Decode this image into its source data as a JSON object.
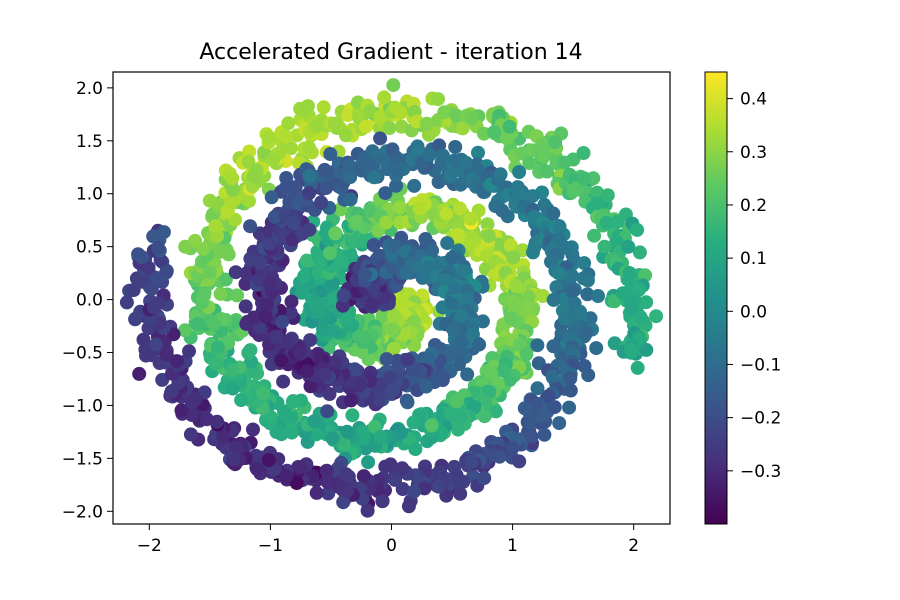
{
  "chart_data": {
    "type": "scatter",
    "title": "Accelerated Gradient - iteration 14",
    "xlabel": "",
    "ylabel": "",
    "xlim": [
      -2.3,
      2.3
    ],
    "ylim": [
      -2.12,
      2.15
    ],
    "x_ticks": [
      -2,
      -1,
      0,
      1,
      2
    ],
    "x_tick_labels": [
      "−2",
      "−1",
      "0",
      "1",
      "2"
    ],
    "y_ticks": [
      2.0,
      1.5,
      1.0,
      0.5,
      0.0,
      -0.5,
      -1.0,
      -1.5,
      -2.0
    ],
    "y_tick_labels": [
      "2.0",
      "1.5",
      "1.0",
      "0.5",
      "0.0",
      "−0.5",
      "−1.0",
      "−1.5",
      "−2.0"
    ],
    "grid": false,
    "colormap": "viridis",
    "colorbar": {
      "range": [
        -0.4,
        0.45
      ],
      "ticks": [
        0.4,
        0.3,
        0.2,
        0.1,
        0.0,
        -0.1,
        -0.2,
        -0.3
      ],
      "tick_labels": [
        "0.4",
        "0.3",
        "0.2",
        "0.1",
        "0.0",
        "−0.1",
        "−0.2",
        "−0.3"
      ]
    },
    "description_points": "two interleaved spiral arms of points colored by model output",
    "spiral_arms": [
      {
        "value_level": "high",
        "start_radius": 0.15,
        "end_radius": 2.0
      },
      {
        "value_level": "low",
        "start_radius": 0.15,
        "end_radius": 2.0
      }
    ]
  }
}
